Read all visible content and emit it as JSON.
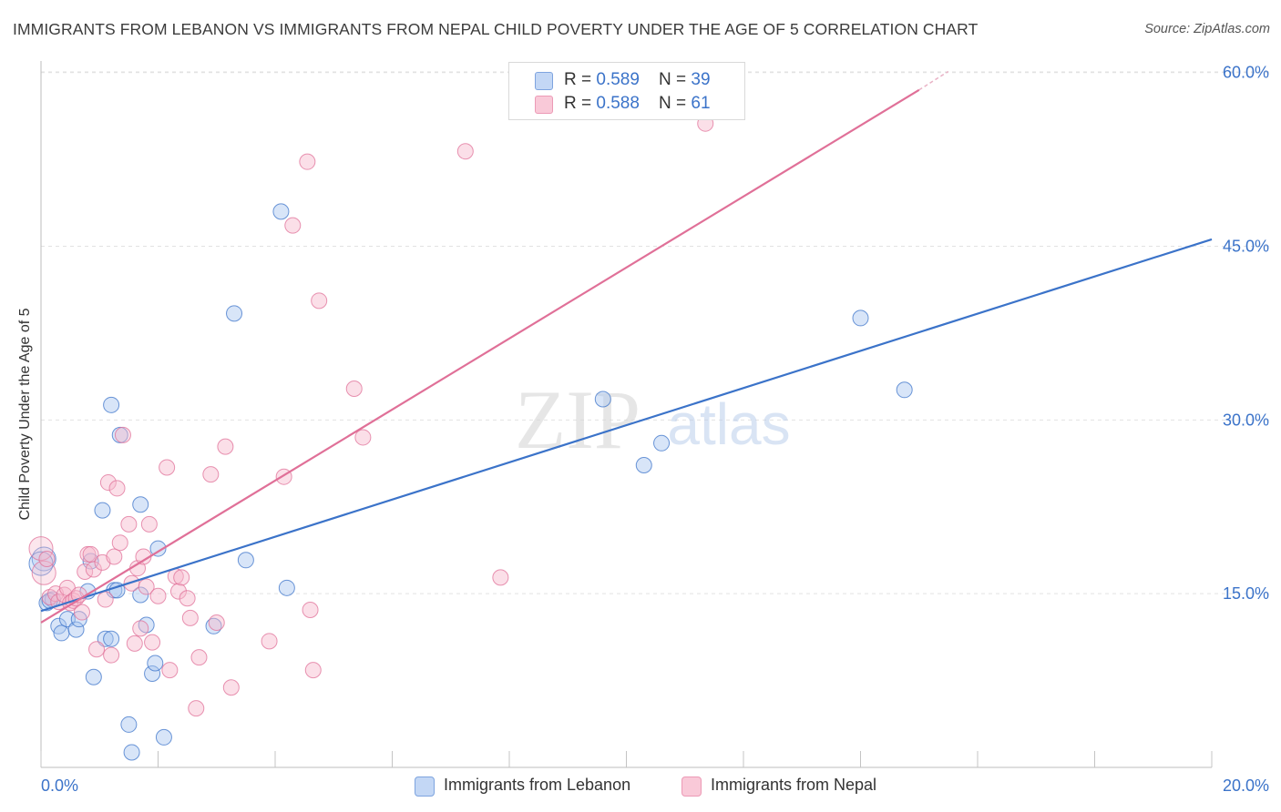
{
  "title": "IMMIGRANTS FROM LEBANON VS IMMIGRANTS FROM NEPAL CHILD POVERTY UNDER THE AGE OF 5 CORRELATION CHART",
  "source": "Source: ZipAtlas.com",
  "watermark": {
    "zip": "ZIP",
    "atlas": "atlas"
  },
  "legend": {
    "lebanon": {
      "r_label": "R = ",
      "r_value": "0.589",
      "n_label": "N = ",
      "n_value": "39"
    },
    "nepal": {
      "r_label": "R = ",
      "r_value": "0.588",
      "n_label": "N = ",
      "n_value": "61"
    }
  },
  "chart_data": {
    "type": "scatter",
    "title": "IMMIGRANTS FROM LEBANON VS IMMIGRANTS FROM NEPAL CHILD POVERTY UNDER THE AGE OF 5 CORRELATION CHART",
    "ylabel": "Child Poverty Under the Age of 5",
    "xlabel": "",
    "xlim": [
      0,
      20
    ],
    "ylim": [
      0,
      61
    ],
    "x_tick_labels": [
      "0.0%",
      "20.0%"
    ],
    "y_ticks": [
      15,
      30,
      45,
      60
    ],
    "y_tick_labels": [
      "15.0%",
      "30.0%",
      "45.0%",
      "60.0%"
    ],
    "grid": true,
    "legend_position": "top-center",
    "colors": {
      "lebanon": "#3b73c9",
      "lebanon_fill": "#a9c6f0",
      "nepal": "#e07098",
      "nepal_fill": "#f6b8cc",
      "label_blue": "#3b73c9"
    },
    "series": [
      {
        "name": "Immigrants from Lebanon",
        "points": [
          [
            0.05,
            18.0
          ],
          [
            0.1,
            14.2
          ],
          [
            0.2,
            14.5
          ],
          [
            0.3,
            12.2
          ],
          [
            0.35,
            11.6
          ],
          [
            0.45,
            12.8
          ],
          [
            0.6,
            11.9
          ],
          [
            0.65,
            12.8
          ],
          [
            0.8,
            15.2
          ],
          [
            0.85,
            17.8
          ],
          [
            0.9,
            7.8
          ],
          [
            1.05,
            22.2
          ],
          [
            1.1,
            11.1
          ],
          [
            1.2,
            11.1
          ],
          [
            1.2,
            31.3
          ],
          [
            1.25,
            15.3
          ],
          [
            1.3,
            15.3
          ],
          [
            1.35,
            28.7
          ],
          [
            1.5,
            3.7
          ],
          [
            1.55,
            1.3
          ],
          [
            1.7,
            22.7
          ],
          [
            1.7,
            14.9
          ],
          [
            1.8,
            12.3
          ],
          [
            1.9,
            8.1
          ],
          [
            1.95,
            9.0
          ],
          [
            2.0,
            18.9
          ],
          [
            2.1,
            2.6
          ],
          [
            2.95,
            12.2
          ],
          [
            3.3,
            39.2
          ],
          [
            3.5,
            17.9
          ],
          [
            4.1,
            48.0
          ],
          [
            4.2,
            15.5
          ],
          [
            9.6,
            31.8
          ],
          [
            10.3,
            26.1
          ],
          [
            10.6,
            28.0
          ],
          [
            14.0,
            38.8
          ],
          [
            14.75,
            32.6
          ],
          [
            0.0,
            17.6
          ],
          [
            0.15,
            14.4
          ]
        ],
        "trend": {
          "x": [
            0.0,
            20.0
          ],
          "y": [
            13.5,
            45.6
          ]
        }
      },
      {
        "name": "Immigrants from Nepal",
        "points": [
          [
            0.0,
            18.9
          ],
          [
            0.05,
            16.8
          ],
          [
            0.1,
            18.0
          ],
          [
            0.15,
            14.7
          ],
          [
            0.25,
            15.0
          ],
          [
            0.3,
            14.3
          ],
          [
            0.4,
            14.9
          ],
          [
            0.45,
            15.5
          ],
          [
            0.5,
            14.2
          ],
          [
            0.55,
            14.4
          ],
          [
            0.6,
            14.6
          ],
          [
            0.65,
            14.9
          ],
          [
            0.7,
            13.4
          ],
          [
            0.75,
            16.9
          ],
          [
            0.8,
            18.4
          ],
          [
            0.85,
            18.4
          ],
          [
            0.9,
            17.1
          ],
          [
            0.95,
            10.2
          ],
          [
            1.05,
            17.7
          ],
          [
            1.1,
            14.5
          ],
          [
            1.15,
            24.6
          ],
          [
            1.2,
            9.7
          ],
          [
            1.25,
            18.2
          ],
          [
            1.3,
            24.1
          ],
          [
            1.35,
            19.4
          ],
          [
            1.4,
            28.7
          ],
          [
            1.5,
            21.0
          ],
          [
            1.55,
            15.9
          ],
          [
            1.6,
            10.7
          ],
          [
            1.65,
            17.2
          ],
          [
            1.7,
            12.0
          ],
          [
            1.75,
            18.2
          ],
          [
            1.8,
            15.6
          ],
          [
            1.85,
            21.0
          ],
          [
            1.9,
            10.8
          ],
          [
            2.0,
            14.8
          ],
          [
            2.15,
            25.9
          ],
          [
            2.2,
            8.4
          ],
          [
            2.3,
            16.5
          ],
          [
            2.35,
            15.2
          ],
          [
            2.4,
            16.4
          ],
          [
            2.5,
            14.6
          ],
          [
            2.55,
            12.9
          ],
          [
            2.65,
            5.1
          ],
          [
            2.7,
            9.5
          ],
          [
            2.9,
            25.3
          ],
          [
            3.0,
            12.5
          ],
          [
            3.15,
            27.7
          ],
          [
            3.25,
            6.9
          ],
          [
            3.9,
            10.9
          ],
          [
            4.15,
            25.1
          ],
          [
            4.3,
            46.8
          ],
          [
            4.55,
            52.3
          ],
          [
            4.6,
            13.6
          ],
          [
            4.65,
            8.4
          ],
          [
            4.75,
            40.3
          ],
          [
            5.35,
            32.7
          ],
          [
            5.5,
            28.5
          ],
          [
            7.25,
            53.2
          ],
          [
            7.85,
            16.4
          ],
          [
            11.35,
            55.6
          ]
        ],
        "trend": {
          "x": [
            0.0,
            15.0
          ],
          "y": [
            12.5,
            58.5
          ]
        },
        "trend_dashed": {
          "x": [
            15.0,
            15.5
          ],
          "y": [
            58.5,
            60.1
          ]
        }
      }
    ]
  }
}
